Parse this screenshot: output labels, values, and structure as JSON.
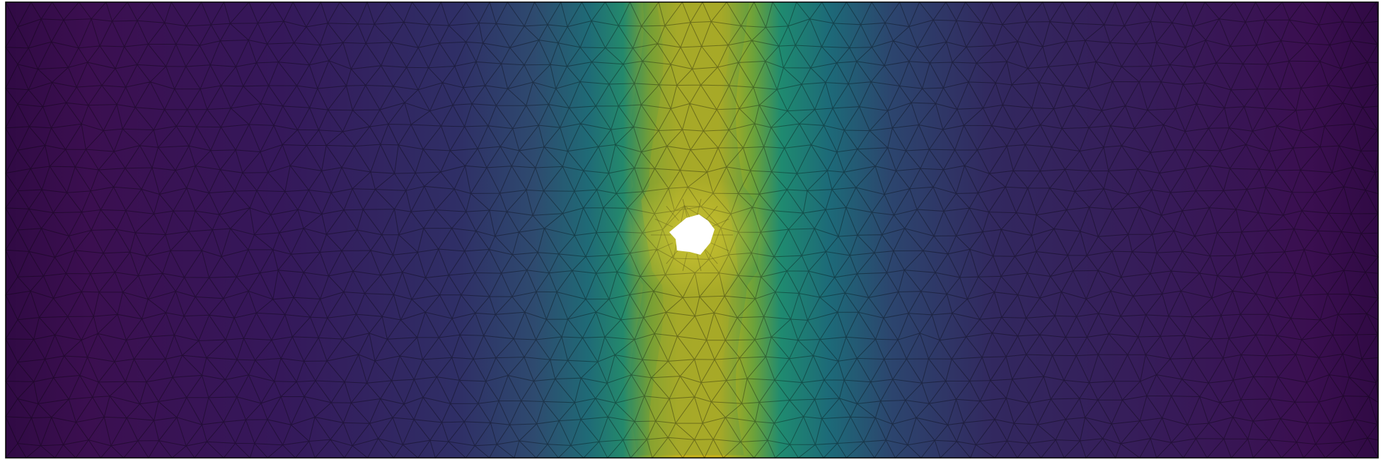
{
  "figure": {
    "description_tag": "fem-mesh-field-plot",
    "colormap": {
      "name": "viridis",
      "stops": [
        "#440154",
        "#3b528b",
        "#21918c",
        "#5ec962",
        "#fde725"
      ]
    },
    "field_colors": {
      "low": "#3a0f4d",
      "mid_low": "#2f3b6b",
      "mid": "#1d7a74",
      "high": "#c9b21a"
    },
    "mesh": {
      "edge_color": "#000000",
      "edge_opacity": 0.35
    },
    "hole": {
      "fill": "#ffffff"
    },
    "frame": {
      "border_color": "#000000"
    }
  }
}
